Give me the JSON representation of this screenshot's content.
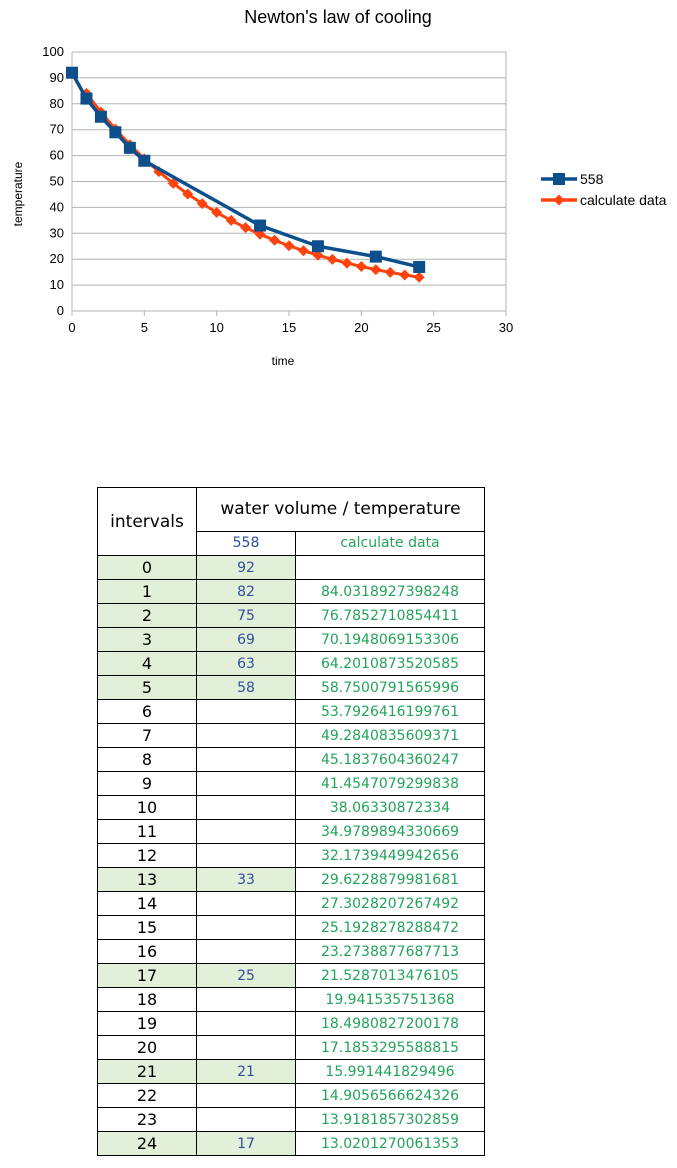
{
  "chart_data": {
    "type": "line",
    "title": "Newton's law of cooling",
    "xlabel": "time",
    "ylabel": "temperature",
    "xlim": [
      0,
      30
    ],
    "ylim": [
      0,
      100
    ],
    "x_ticks": [
      0,
      5,
      10,
      15,
      20,
      25,
      30
    ],
    "y_ticks": [
      0,
      10,
      20,
      30,
      40,
      50,
      60,
      70,
      80,
      90,
      100
    ],
    "grid": "horizontal",
    "legend_position": "right",
    "series": [
      {
        "name": "558",
        "color": "#0d4f8b",
        "marker": "square",
        "x": [
          0,
          1,
          2,
          3,
          4,
          5,
          13,
          17,
          21,
          24
        ],
        "y": [
          92,
          82,
          75,
          69,
          63,
          58,
          33,
          25,
          21,
          17
        ]
      },
      {
        "name": "calculate data",
        "color": "#ff420e",
        "marker": "diamond",
        "x": [
          1,
          2,
          3,
          4,
          5,
          6,
          7,
          8,
          9,
          10,
          11,
          12,
          13,
          14,
          15,
          16,
          17,
          18,
          19,
          20,
          21,
          22,
          23,
          24
        ],
        "y": [
          84.03,
          76.79,
          70.19,
          64.2,
          58.75,
          53.79,
          49.28,
          45.18,
          41.45,
          38.06,
          34.98,
          32.17,
          29.62,
          27.3,
          25.19,
          23.27,
          21.53,
          19.94,
          18.5,
          17.19,
          15.99,
          14.91,
          13.92,
          13.02
        ]
      }
    ]
  },
  "table": {
    "header_intervals": "intervals",
    "header_group": "water volume / temperature",
    "header_col1": "558",
    "header_col2": "calculate data",
    "rows": [
      {
        "interval": "0",
        "v558": "92",
        "calc": ""
      },
      {
        "interval": "1",
        "v558": "82",
        "calc": "84.0318927398248"
      },
      {
        "interval": "2",
        "v558": "75",
        "calc": "76.7852710854411"
      },
      {
        "interval": "3",
        "v558": "69",
        "calc": "70.1948069153306"
      },
      {
        "interval": "4",
        "v558": "63",
        "calc": "64.2010873520585"
      },
      {
        "interval": "5",
        "v558": "58",
        "calc": "58.7500791565996"
      },
      {
        "interval": "6",
        "v558": "",
        "calc": "53.7926416199761"
      },
      {
        "interval": "7",
        "v558": "",
        "calc": "49.2840835609371"
      },
      {
        "interval": "8",
        "v558": "",
        "calc": "45.1837604360247"
      },
      {
        "interval": "9",
        "v558": "",
        "calc": "41.4547079299838"
      },
      {
        "interval": "10",
        "v558": "",
        "calc": "38.06330872334"
      },
      {
        "interval": "11",
        "v558": "",
        "calc": "34.9789894330669"
      },
      {
        "interval": "12",
        "v558": "",
        "calc": "32.1739449942656"
      },
      {
        "interval": "13",
        "v558": "33",
        "calc": "29.6228879981681"
      },
      {
        "interval": "14",
        "v558": "",
        "calc": "27.3028207267492"
      },
      {
        "interval": "15",
        "v558": "",
        "calc": "25.1928278288472"
      },
      {
        "interval": "16",
        "v558": "",
        "calc": "23.2738877687713"
      },
      {
        "interval": "17",
        "v558": "25",
        "calc": "21.5287013476105"
      },
      {
        "interval": "18",
        "v558": "",
        "calc": "19.941535751368"
      },
      {
        "interval": "19",
        "v558": "",
        "calc": "18.4980827200178"
      },
      {
        "interval": "20",
        "v558": "",
        "calc": "17.1853295588815"
      },
      {
        "interval": "21",
        "v558": "21",
        "calc": "15.991441829496"
      },
      {
        "interval": "22",
        "v558": "",
        "calc": "14.9056566624326"
      },
      {
        "interval": "23",
        "v558": "",
        "calc": "13.9181857302859"
      },
      {
        "interval": "24",
        "v558": "17",
        "calc": "13.0201270061353"
      }
    ]
  }
}
